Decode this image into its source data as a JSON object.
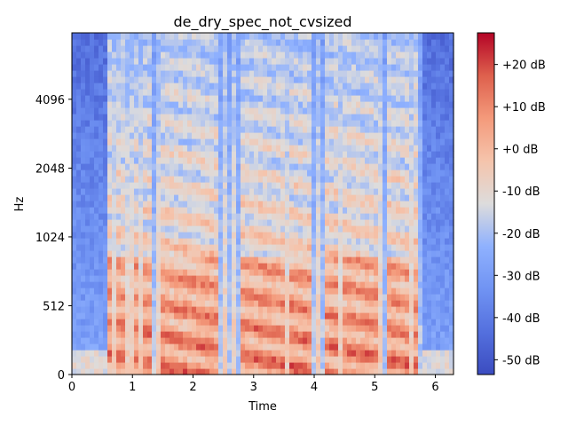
{
  "chart_data": {
    "type": "heatmap",
    "title": "de_dry_spec_not_cvsized",
    "xlabel": "Time",
    "ylabel": "Hz",
    "x_ticks": [
      "0",
      "1",
      "2",
      "3",
      "4",
      "5",
      "6"
    ],
    "x_tick_values": [
      0,
      1,
      2,
      3,
      4,
      5,
      6
    ],
    "xlim": [
      0,
      6.3
    ],
    "y_scale": "symlog (mel-like, linear below 512 Hz then log2)",
    "y_ticks": [
      "0",
      "512",
      "1024",
      "2048",
      "4096"
    ],
    "y_tick_values": [
      0,
      512,
      1024,
      2048,
      4096
    ],
    "ylim": [
      0,
      8000
    ],
    "colormap": "coolwarm",
    "colorbar": {
      "ticks": [
        "+20 dB",
        "+10 dB",
        "+0 dB",
        "-10 dB",
        "-20 dB",
        "-30 dB",
        "-40 dB",
        "-50 dB"
      ],
      "tick_values": [
        20,
        10,
        0,
        -10,
        -20,
        -30,
        -40,
        -50
      ],
      "range": [
        -53.5,
        27.5
      ]
    },
    "grid": false,
    "notes_visible": "Speech-like spectrogram: low-energy (blue) background with harmonic stacks (red) between ~0.6 s and ~5.7 s, strongest near 150-500 Hz."
  },
  "colors": {
    "cmap_low": "#3b4cc0",
    "cmap_mid": "#dddddd",
    "cmap_high": "#b40426"
  }
}
